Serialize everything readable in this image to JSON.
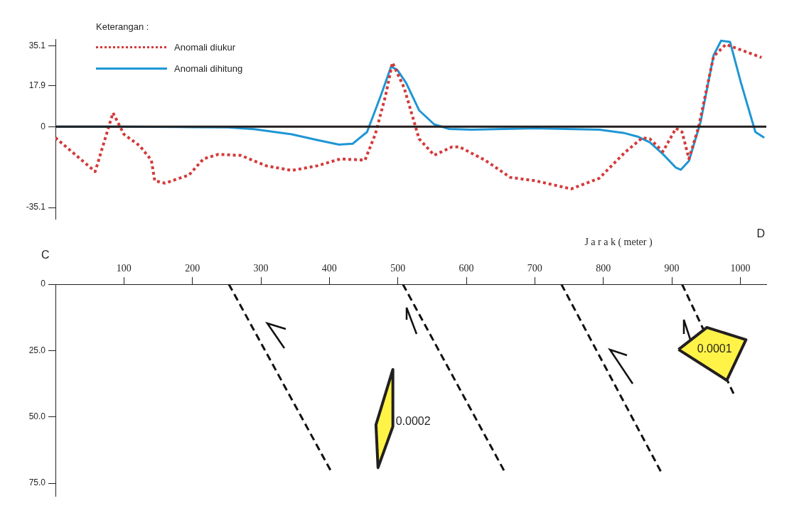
{
  "chart_data": [
    {
      "type": "line",
      "legend_title": "Keterangan :",
      "legend": "top left",
      "marker": "none",
      "tick_labels": "y",
      "x": [
        0,
        58,
        84,
        100,
        123,
        140,
        145,
        160,
        195,
        216,
        238,
        271,
        308,
        345,
        382,
        416,
        452,
        467,
        482,
        492,
        509,
        531,
        553,
        579,
        590,
        627,
        664,
        701,
        753,
        794,
        831,
        857,
        868,
        887,
        906,
        915,
        925,
        939,
        961,
        979,
        1031
      ],
      "xlim": [
        0,
        1038
      ],
      "ylim": [
        -40,
        38
      ],
      "yticks": [
        -35.1,
        0,
        17.9,
        35.1
      ],
      "ref_lines": [
        {
          "axis": "y",
          "value": 0,
          "color": "#231f20"
        }
      ],
      "series": [
        {
          "name": "Anomali diukur",
          "color": "#d43a3a",
          "line_style": "dotted",
          "values": [
            -4.8,
            -19.5,
            6,
            -3.3,
            -8.3,
            -14.5,
            -23.5,
            -24.5,
            -21,
            -14,
            -12,
            -12.5,
            -17,
            -19,
            -17,
            -14,
            -14.5,
            -3.3,
            13.4,
            27.8,
            17,
            -5.3,
            -12.4,
            -8.8,
            -8.8,
            -14.5,
            -22,
            -23.5,
            -27,
            -22.4,
            -11.3,
            -4.8,
            -5.3,
            -10.8,
            -0.7,
            -2.3,
            -13.9,
            -0.3,
            30.5,
            35.7,
            30
          ]
        },
        {
          "name": "Anomali dihitung",
          "color": "#1e96d4",
          "line_style": "solid",
          "x": [
            0,
            100,
            200,
            252,
            290,
            345,
            382,
            414,
            434,
            455,
            475,
            490,
            499,
            512,
            531,
            553,
            575,
            608,
            701,
            794,
            831,
            850,
            868,
            887,
            906,
            913,
            925,
            942,
            961,
            972,
            985,
            1001,
            1022,
            1035
          ],
          "values": [
            0,
            0,
            -0.2,
            -0.3,
            -1.1,
            -3.3,
            -5.8,
            -7.8,
            -7.4,
            -2.3,
            13.4,
            26,
            24.7,
            19,
            7.1,
            1,
            -1,
            -1.3,
            -0.7,
            -1.3,
            -2.8,
            -4.3,
            -6.8,
            -11.9,
            -17.8,
            -18.7,
            -14.9,
            2,
            31,
            37.3,
            36.8,
            19,
            -2.3,
            -4.8
          ]
        }
      ]
    },
    {
      "type": "line",
      "xlabel": "J a r a k ( meter )",
      "xlim": [
        0,
        1038
      ],
      "xticks": [
        100,
        200,
        300,
        400,
        500,
        600,
        700,
        800,
        900,
        1000
      ],
      "marker": "none",
      "series": [
        {
          "type": "area",
          "name": "0.0002",
          "color": "#fff347",
          "x": [
            492.7,
            492.7,
            471,
            468,
            492.7
          ],
          "values": [
            32.1,
            53.6,
            69.1,
            53,
            32.1
          ]
        },
        {
          "type": "area",
          "name": "0.0001",
          "color": "#fff347",
          "x": [
            909.8,
            951.2,
            1008.3,
            980.3,
            909.8
          ],
          "values": [
            24.6,
            16.3,
            20.9,
            36.2,
            24.6
          ]
        },
        {
          "color": "#111111",
          "line_style": "dashed",
          "x": [
            253.2,
            402.5
          ],
          "values": [
            0,
            70.5
          ]
        },
        {
          "color": "#111111",
          "line_style": "dashed",
          "x": [
            507.3,
            655.6
          ],
          "values": [
            0,
            70.5
          ]
        },
        {
          "color": "#111111",
          "line_style": "dashed",
          "x": [
            738.7,
            883.8
          ],
          "values": [
            0,
            70.5
          ]
        },
        {
          "color": "#111111",
          "line_style": "dashed",
          "x": [
            915,
            990.7
          ],
          "values": [
            0,
            41.5
          ]
        }
      ],
      "ylim": [
        80,
        0
      ],
      "yticks": [
        0,
        {
          "value": 25,
          "label": "25.0"
        },
        {
          "value": 50,
          "label": "50.0"
        },
        {
          "value": 75,
          "label": "75.0"
        }
      ],
      "annotations": [
        "C",
        "D"
      ]
    }
  ]
}
